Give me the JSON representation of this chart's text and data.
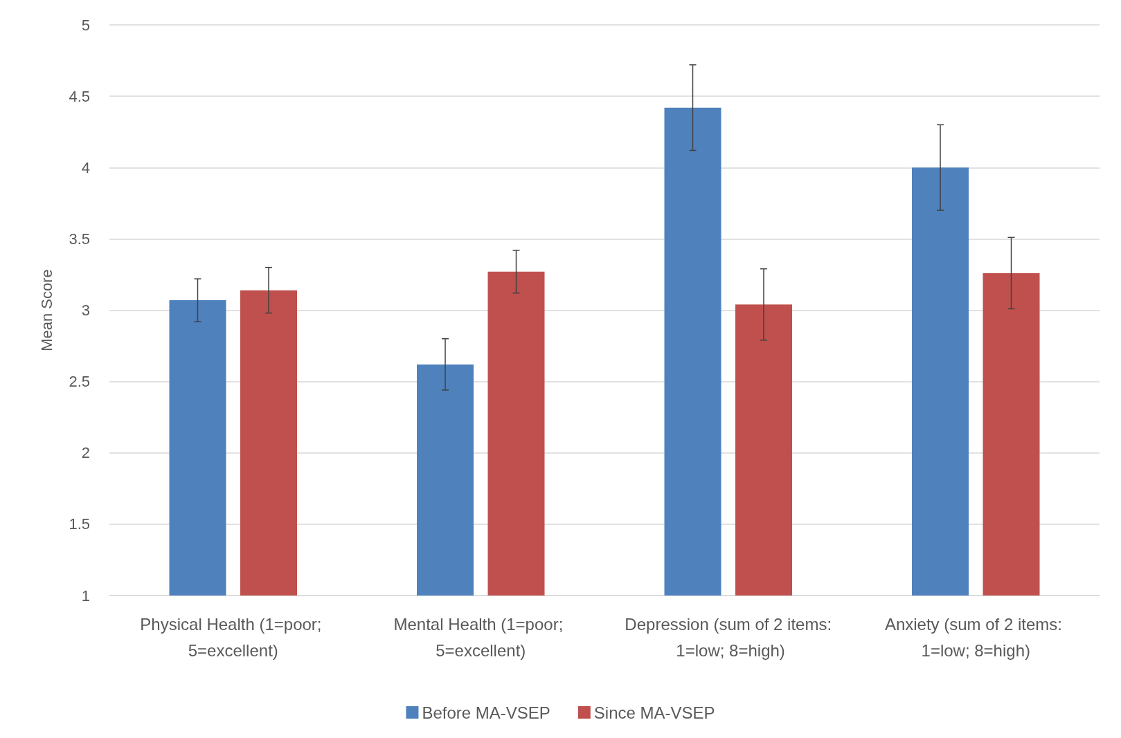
{
  "chart_data": {
    "type": "bar",
    "ylabel": "Mean Score",
    "categories": [
      "Physical Health (1=poor; 5=excellent)",
      "Mental Health (1=poor; 5=excellent)",
      "Depression (sum of 2 items: 1=low; 8=high)",
      "Anxiety (sum of 2 items: 1=low; 8=high)"
    ],
    "series": [
      {
        "name": "Before MA-VSEP",
        "color": "#4f81bd",
        "values": [
          3.07,
          2.62,
          4.42,
          4.0
        ],
        "errors": [
          0.15,
          0.18,
          0.3,
          0.3
        ]
      },
      {
        "name": "Since MA-VSEP",
        "color": "#c0504d",
        "values": [
          3.14,
          3.27,
          3.04,
          3.26
        ],
        "errors": [
          0.16,
          0.15,
          0.25,
          0.25
        ]
      }
    ],
    "ylim": [
      1,
      5
    ],
    "yticks": [
      1,
      1.5,
      2,
      2.5,
      3,
      3.5,
      4,
      4.5,
      5
    ],
    "grid": "y",
    "legend": "bottom"
  }
}
